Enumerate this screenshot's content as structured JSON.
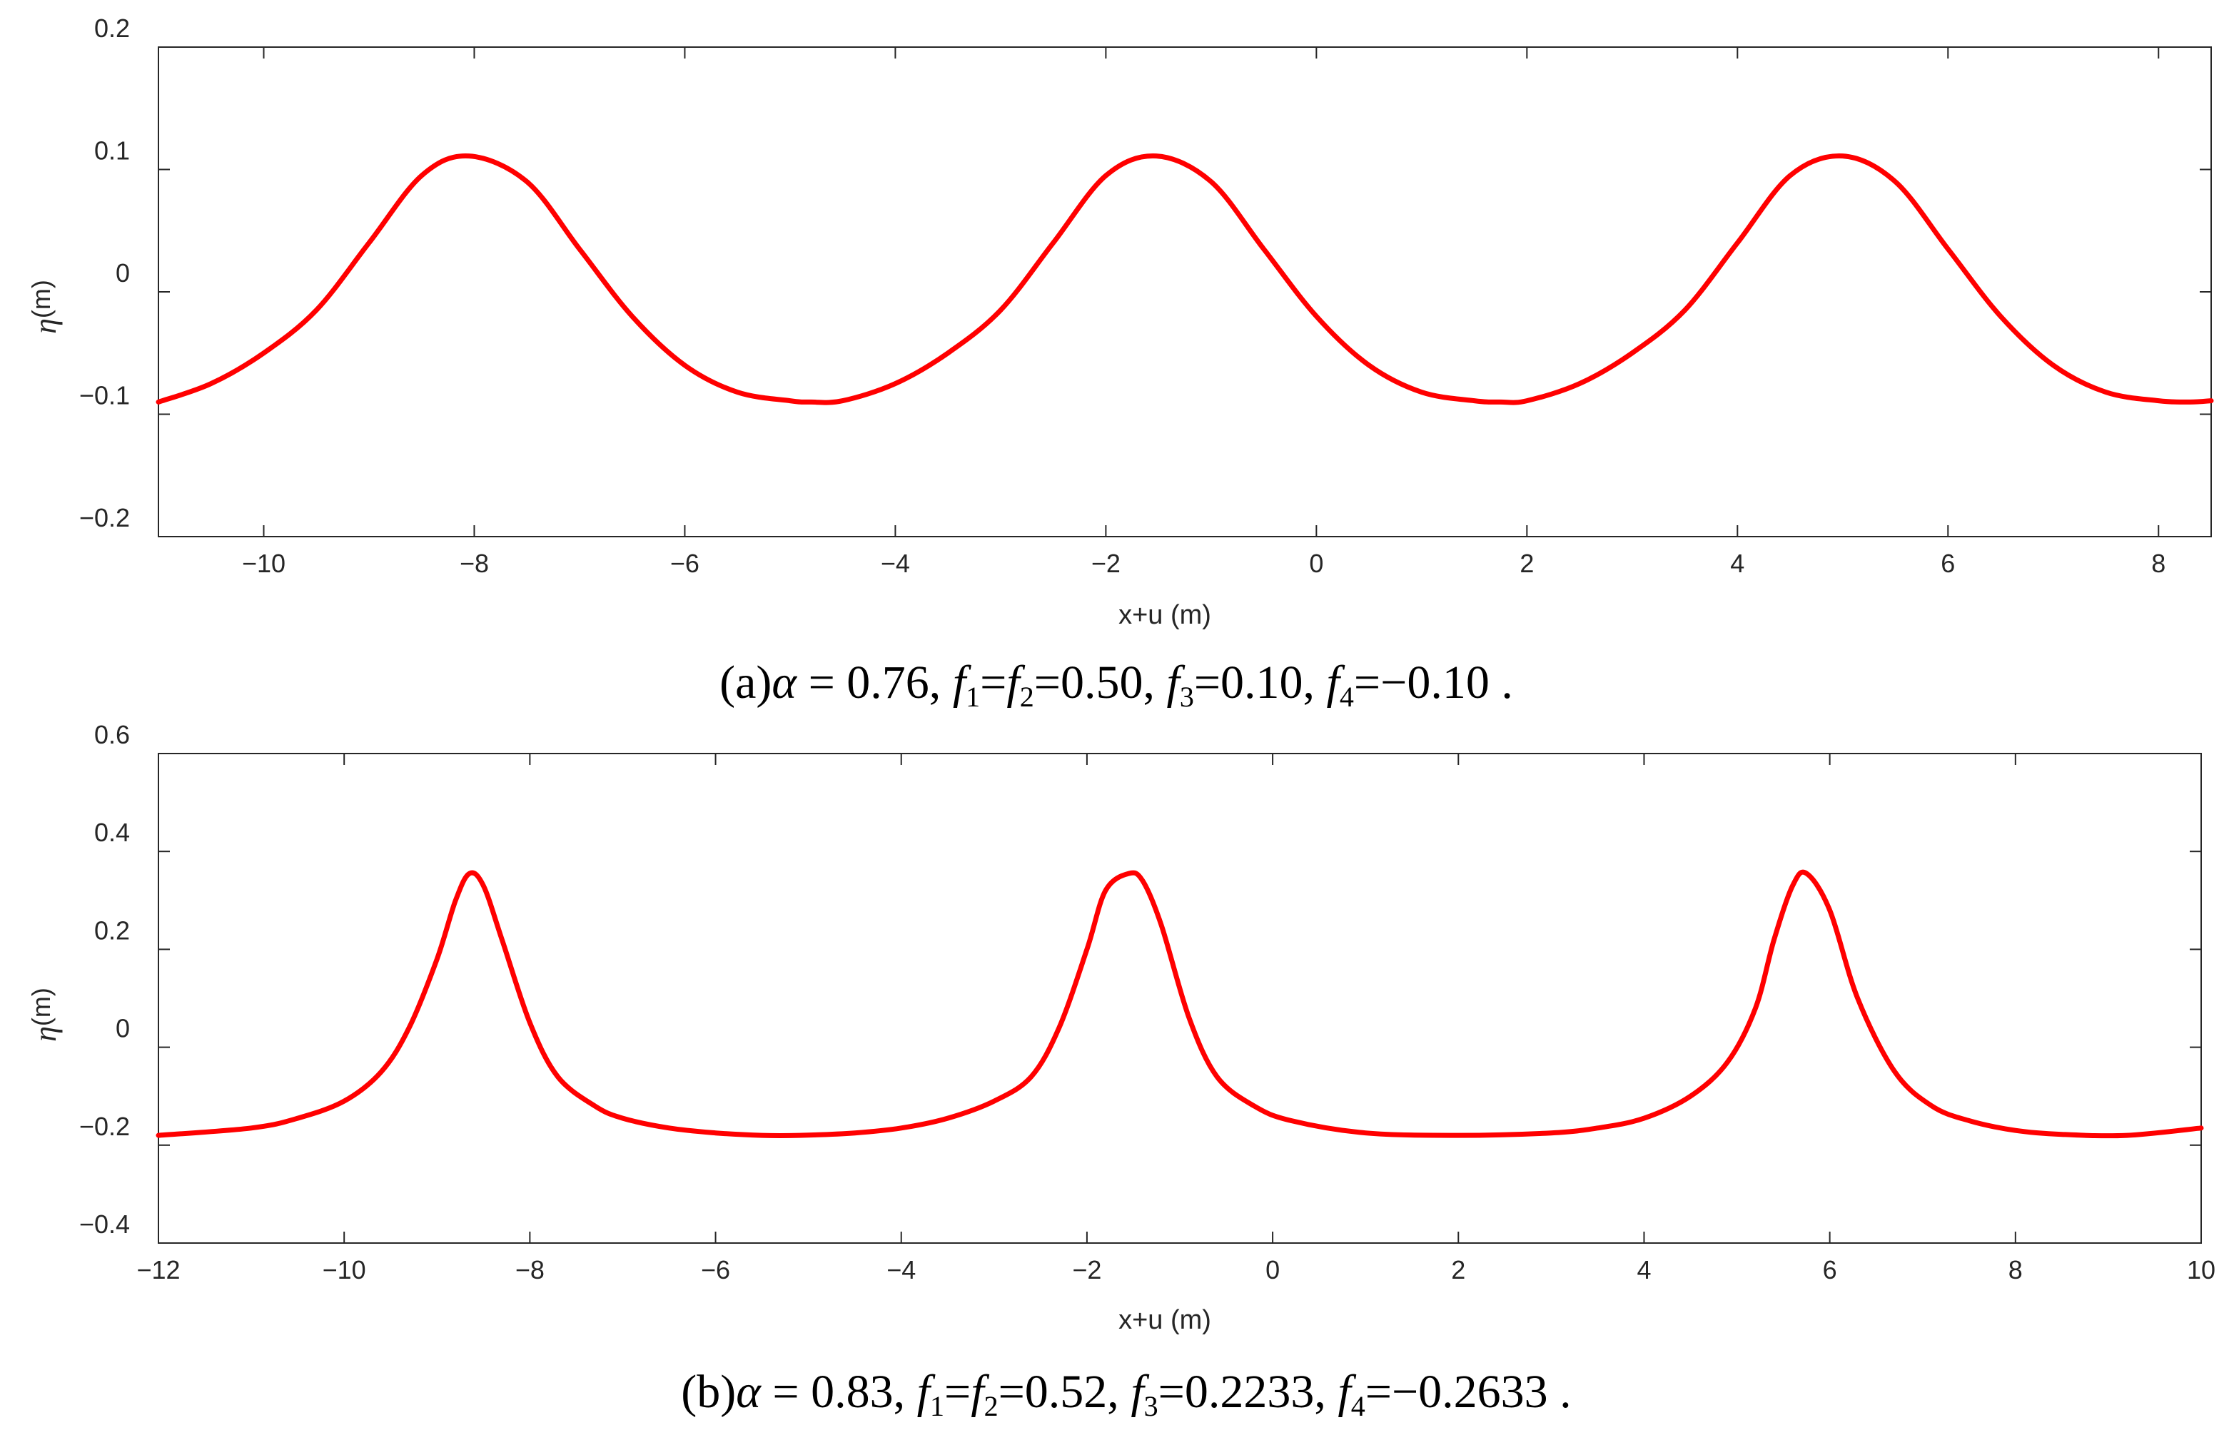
{
  "chart_data": [
    {
      "type": "line",
      "panel": "(a)",
      "xlabel": "x+u (m)",
      "ylabel_symbol": "η",
      "ylabel_unit": "(m)",
      "xlim": [
        -11,
        8.5
      ],
      "ylim": [
        -0.2,
        0.2
      ],
      "xticks": [
        -10,
        -8,
        -6,
        -4,
        -2,
        0,
        2,
        4,
        6,
        8
      ],
      "xtick_labels": [
        "−10",
        "−8",
        "−6",
        "−4",
        "−2",
        "0",
        "2",
        "4",
        "6",
        "8"
      ],
      "yticks": [
        -0.2,
        -0.1,
        0,
        0.1,
        0.2
      ],
      "ytick_labels": [
        "−0.2",
        "−0.1",
        "0",
        "0.1",
        "0.2"
      ],
      "grid": false,
      "series": [
        {
          "color": "#ff0000",
          "x": [
            -11,
            -10.5,
            -10,
            -9.5,
            -9,
            -8.5,
            -8.05,
            -7.5,
            -7,
            -6.5,
            -6,
            -5.5,
            -5,
            -4.8,
            -4.5,
            -4,
            -3.5,
            -3,
            -2.5,
            -2,
            -1.52,
            -1,
            -0.5,
            0,
            0.5,
            1,
            1.5,
            1.75,
            2,
            2.5,
            3,
            3.5,
            4,
            4.5,
            5.0,
            5.5,
            6,
            6.5,
            7,
            7.5,
            8,
            8.3,
            8.5
          ],
          "y": [
            -0.09,
            -0.075,
            -0.05,
            -0.015,
            0.04,
            0.095,
            0.111,
            0.09,
            0.035,
            -0.02,
            -0.06,
            -0.082,
            -0.089,
            -0.09,
            -0.089,
            -0.075,
            -0.05,
            -0.015,
            0.04,
            0.095,
            0.111,
            0.09,
            0.035,
            -0.02,
            -0.06,
            -0.082,
            -0.089,
            -0.09,
            -0.089,
            -0.075,
            -0.05,
            -0.015,
            0.04,
            0.095,
            0.111,
            0.09,
            0.035,
            -0.02,
            -0.06,
            -0.082,
            -0.089,
            -0.09,
            -0.089
          ]
        }
      ],
      "caption": {
        "label": "(a)",
        "symbol": "α",
        "eq1": " = 0.76,  ",
        "f1": "f",
        "f1_sub": "1",
        "mid1": "=",
        "f2": "f",
        "f2_sub": "2",
        "val12": "=0.50, ",
        "f3": "f",
        "f3_sub": "3",
        "val3": "=0.10, ",
        "f4": "f",
        "f4_sub": "4",
        "val4": "=−0.10 ."
      }
    },
    {
      "type": "line",
      "panel": "(b)",
      "xlabel": "x+u (m)",
      "ylabel_symbol": "η",
      "ylabel_unit": "(m)",
      "xlim": [
        -12,
        10
      ],
      "ylim": [
        -0.4,
        0.6
      ],
      "xticks": [
        -12,
        -10,
        -8,
        -6,
        -4,
        -2,
        0,
        2,
        4,
        6,
        8,
        10
      ],
      "xtick_labels": [
        "−12",
        "−10",
        "−8",
        "−6",
        "−4",
        "−2",
        "0",
        "2",
        "4",
        "6",
        "8",
        "10"
      ],
      "yticks": [
        -0.4,
        -0.2,
        0,
        0.2,
        0.4,
        0.6
      ],
      "ytick_labels": [
        "−0.4",
        "−0.2",
        "0",
        "0.2",
        "0.4",
        "0.6"
      ],
      "grid": false,
      "series": [
        {
          "color": "#ff0000",
          "x": [
            -12,
            -11,
            -10.5,
            -10,
            -9.6,
            -9.3,
            -9,
            -8.8,
            -8.65,
            -8.5,
            -8.3,
            -8,
            -7.7,
            -7.3,
            -7,
            -6.5,
            -6,
            -5.5,
            -5.1,
            -4.5,
            -4,
            -3.5,
            -3,
            -2.6,
            -2.3,
            -2,
            -1.8,
            -1.55,
            -1.4,
            -1.2,
            -0.9,
            -0.6,
            -0.2,
            0.2,
            1,
            2,
            3,
            3.5,
            4,
            4.5,
            4.9,
            5.2,
            5.4,
            5.6,
            5.75,
            6,
            6.3,
            6.7,
            7.1,
            7.5,
            8,
            8.5,
            9.2,
            10
          ],
          "y": [
            -0.18,
            -0.165,
            -0.145,
            -0.11,
            -0.05,
            0.04,
            0.18,
            0.3,
            0.355,
            0.33,
            0.22,
            0.05,
            -0.06,
            -0.12,
            -0.145,
            -0.165,
            -0.175,
            -0.18,
            -0.18,
            -0.175,
            -0.165,
            -0.145,
            -0.11,
            -0.06,
            0.04,
            0.2,
            0.32,
            0.355,
            0.34,
            0.25,
            0.06,
            -0.06,
            -0.12,
            -0.15,
            -0.175,
            -0.18,
            -0.175,
            -0.165,
            -0.145,
            -0.1,
            -0.03,
            0.08,
            0.22,
            0.33,
            0.355,
            0.28,
            0.1,
            -0.05,
            -0.12,
            -0.15,
            -0.17,
            -0.178,
            -0.18,
            -0.165
          ]
        }
      ],
      "caption": {
        "label": "(b)",
        "symbol": "α",
        "eq1": " = 0.83,  ",
        "f1": "f",
        "f1_sub": "1",
        "mid1": "=",
        "f2": "f",
        "f2_sub": "2",
        "val12": "=0.52, ",
        "f3": "f",
        "f3_sub": "3",
        "val3": "=0.2233, ",
        "f4": "f",
        "f4_sub": "4",
        "val4": "=−0.2633 ."
      }
    }
  ]
}
